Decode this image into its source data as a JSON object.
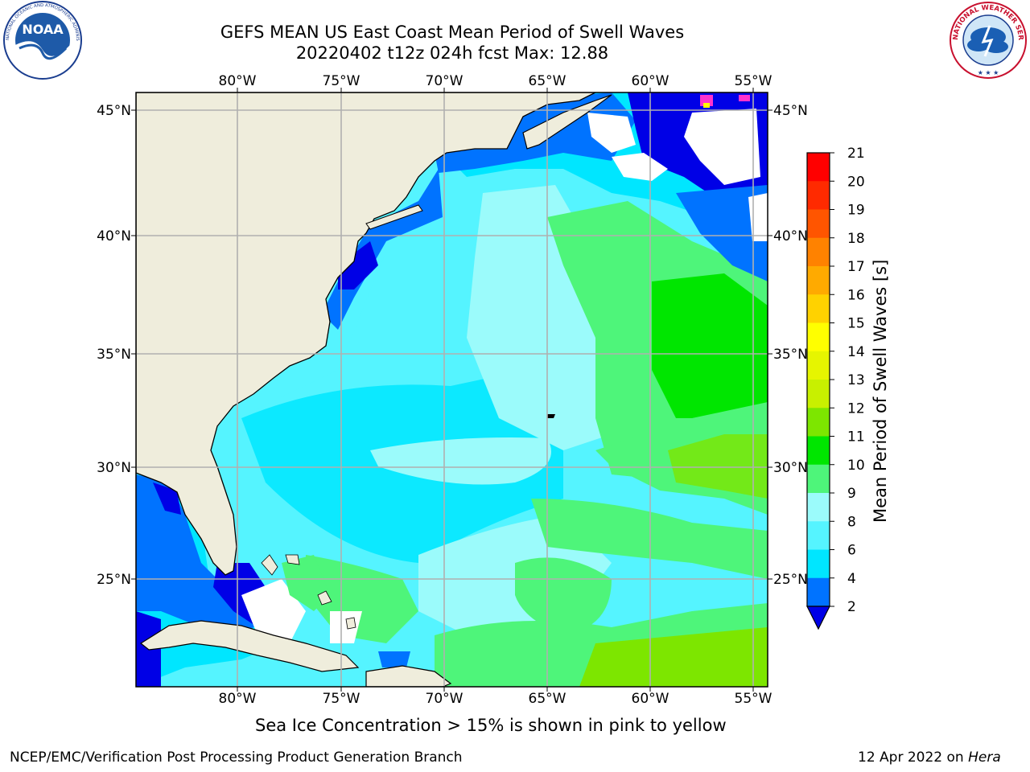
{
  "header": {
    "title_line1": "GEFS MEAN US East Coast Mean Period of Swell Waves",
    "title_line2": "20220402 t12z 024h fcst   Max: 12.88"
  },
  "logos": {
    "noaa": {
      "text": "NOAA",
      "ring_text": "NATIONAL OCEANIC AND ATMOSPHERIC ADMINISTRATION · U.S. DEPARTMENT OF COMMERCE"
    },
    "nws": {
      "ring_text": "NATIONAL WEATHER SERVICE"
    }
  },
  "map": {
    "lon_labels": [
      "80°W",
      "75°W",
      "70°W",
      "65°W",
      "60°W",
      "55°W"
    ],
    "lat_labels": [
      "45°N",
      "40°N",
      "35°N",
      "30°N",
      "25°N"
    ],
    "colors": {
      "land": "#efeddc",
      "grid": "#b0b0b0",
      "coast": "#000000",
      "nodata": "#ffffff"
    }
  },
  "colorbar": {
    "label": "Mean Period of Swell Waves [s]",
    "ticks": [
      "2",
      "4",
      "6",
      "8",
      "9",
      "10",
      "11",
      "12",
      "13",
      "14",
      "15",
      "16",
      "17",
      "18",
      "19",
      "20",
      "21"
    ],
    "colors": [
      "#0000e6",
      "#0073ff",
      "#00e6ff",
      "#55f4ff",
      "#9bfbfb",
      "#4ef57a",
      "#00e600",
      "#7de600",
      "#c8f000",
      "#e6f500",
      "#ffff00",
      "#ffd200",
      "#ffaa00",
      "#ff8200",
      "#ff5500",
      "#ff2a00",
      "#ff0000"
    ],
    "extend_color": "#0000e6"
  },
  "caption": "Sea Ice Concentration > 15% is shown in pink to yellow",
  "footer": {
    "left": "NCEP/EMC/Verification Post Processing Product Generation Branch",
    "right_date": "12 Apr 2022 on ",
    "right_host": "Hera"
  }
}
